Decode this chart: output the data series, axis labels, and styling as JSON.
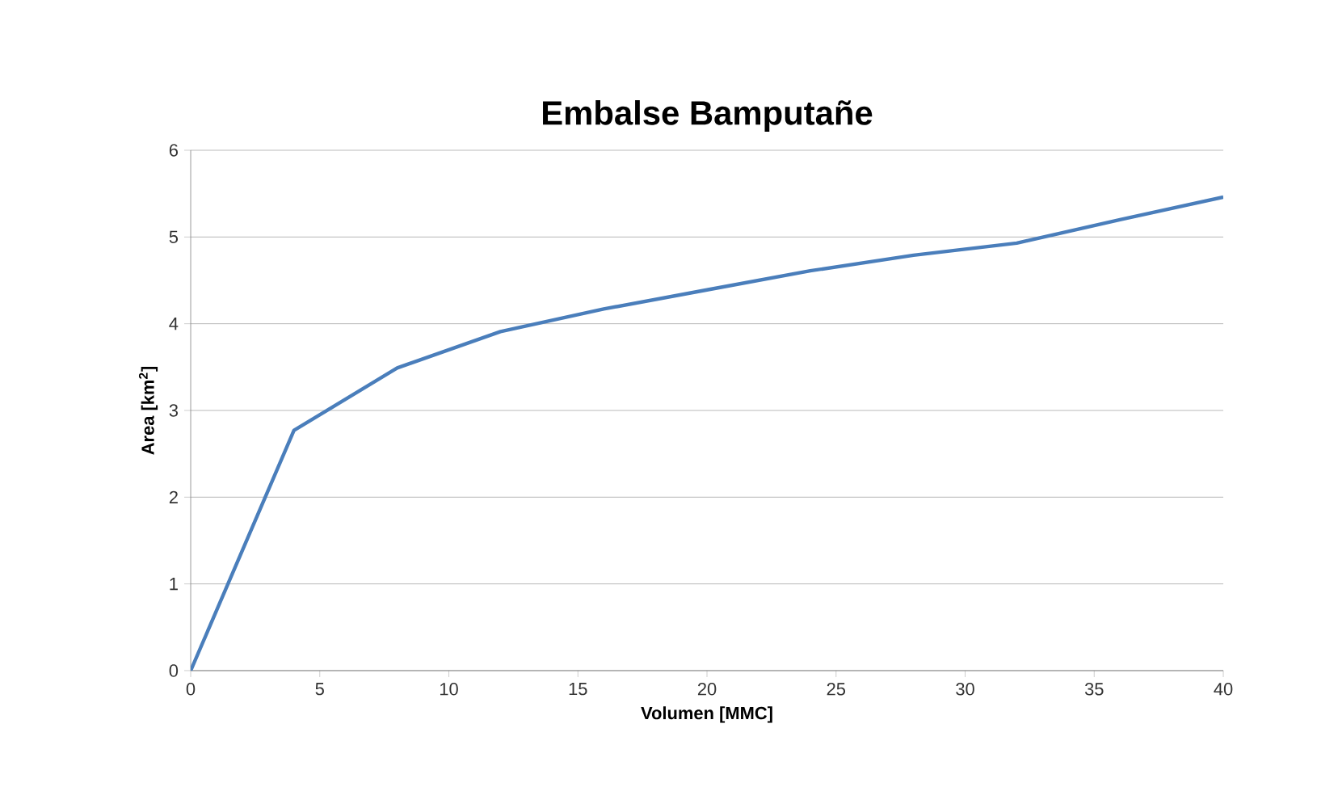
{
  "chart_data": {
    "type": "line",
    "title": "**Embalse Bamputañe**",
    "xlabel": "**Volumen [MMC]**",
    "ylabel": "**Area [km$^{2}$]**",
    "x": [
      0,
      4,
      8,
      12,
      16,
      20,
      24,
      28,
      32,
      36,
      40
    ],
    "series": [
      {
        "color": "#4a7ebb",
        "values": [
          0,
          2.77,
          3.49,
          3.91,
          4.17,
          4.39,
          4.61,
          4.79,
          4.93,
          5.2,
          5.46
        ]
      }
    ],
    "xlim": [
      0,
      40
    ],
    "xticks": [
      0,
      5,
      10,
      15,
      20,
      25,
      30,
      35,
      40
    ],
    "ylim": [
      0,
      6
    ],
    "yticks": [
      0,
      1,
      2,
      3,
      4,
      5,
      6
    ],
    "grid": "y",
    "marker": "none",
    "line_style": "solid"
  }
}
